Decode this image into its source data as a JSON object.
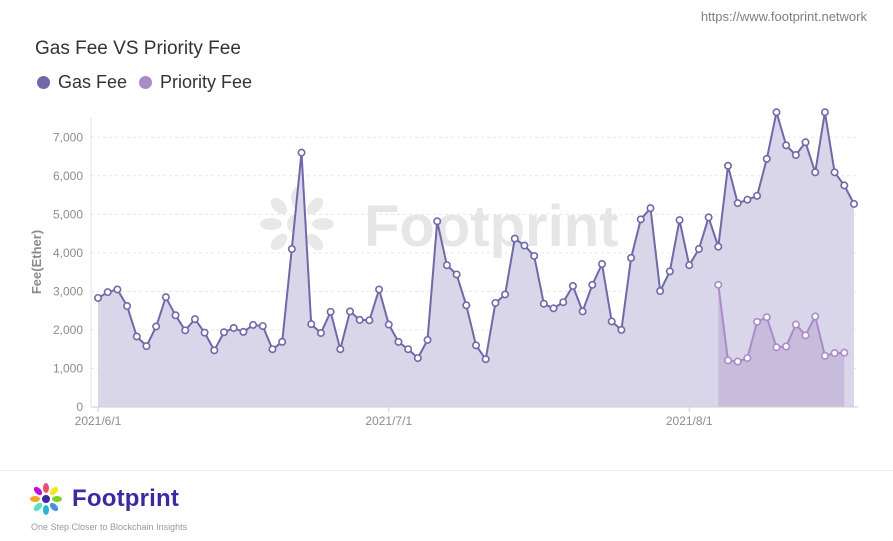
{
  "source_url": "https://www.footprint.network",
  "brand": {
    "name": "Footprint",
    "tagline": "One Step Closer to Blockchain Insights",
    "watermark": "Footprint"
  },
  "colors": {
    "gas_fee": "#6e6aa8",
    "priority_fee": "#a98bc9",
    "area_fill": "#d9d6e9"
  },
  "chart_data": {
    "type": "area",
    "title": "Gas Fee VS Priority Fee",
    "xlabel": "",
    "ylabel": "Fee(Ether)",
    "ylim": [
      0,
      7500
    ],
    "yticks": [
      0,
      1000,
      2000,
      3000,
      4000,
      5000,
      6000,
      7000
    ],
    "ytick_labels": [
      "0",
      "1,000",
      "2,000",
      "3,000",
      "4,000",
      "5,000",
      "6,000",
      "7,000"
    ],
    "xticks": [
      0,
      30,
      61
    ],
    "xtick_labels": [
      "2021/6/1",
      "2021/7/1",
      "2021/8/1"
    ],
    "grid": true,
    "legend_position": "top-left",
    "x_start": "2021-06-01",
    "series": [
      {
        "name": "Gas Fee",
        "start_index": 0,
        "values": [
          2830,
          2980,
          3050,
          2620,
          1830,
          1580,
          2090,
          2850,
          2380,
          1990,
          2280,
          1930,
          1470,
          1940,
          2050,
          1950,
          2130,
          2100,
          1500,
          1690,
          4100,
          6600,
          2150,
          1920,
          2470,
          1500,
          2480,
          2260,
          2250,
          3050,
          2140,
          1690,
          1500,
          1270,
          1740,
          4820,
          3680,
          3440,
          2640,
          1600,
          1240,
          2700,
          2920,
          4370,
          4190,
          3920,
          2680,
          2560,
          2720,
          3140,
          2480,
          3170,
          3710,
          2220,
          2000,
          3870,
          4870,
          5160,
          3010,
          3520,
          4850,
          3680,
          4100,
          4920,
          4160,
          6260,
          5290,
          5380,
          5480,
          6440,
          7650,
          6790,
          6540,
          6870,
          6090,
          7650,
          6090,
          5750,
          5270
        ]
      },
      {
        "name": "Priority Fee",
        "start_index": 64,
        "values": [
          3170,
          1210,
          1180,
          1270,
          2210,
          2330,
          1550,
          1570,
          2140,
          1860,
          2350,
          1330,
          1400,
          1410
        ]
      }
    ]
  }
}
